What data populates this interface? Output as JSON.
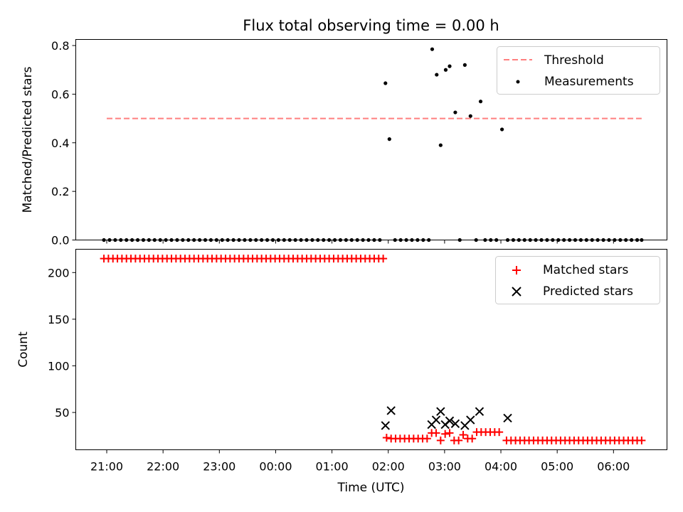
{
  "chart_data": [
    {
      "type": "scatter",
      "title": "Flux total observing time = 0.00 h",
      "xlabel": "",
      "ylabel": "Matched/Predicted stars",
      "xlim": [
        20.45,
        30.95
      ],
      "ylim": [
        0.0,
        0.825
      ],
      "yticks": [
        0.0,
        0.2,
        0.4,
        0.6,
        0.8
      ],
      "ytick_labels": [
        "0.0",
        "0.2",
        "0.4",
        "0.6",
        "0.8"
      ],
      "legend": {
        "position": "top-right",
        "threshold_label": "Threshold",
        "measurements_label": "Measurements"
      },
      "threshold": {
        "name": "Threshold",
        "value": 0.5,
        "x_range": [
          21.0,
          30.5
        ],
        "color": "#ff7f7f"
      },
      "series": [
        {
          "name": "Measurements",
          "color": "#000000",
          "x": [
            20.95,
            21.05,
            21.15,
            21.25,
            21.35,
            21.45,
            21.55,
            21.65,
            21.75,
            21.85,
            21.95,
            22.05,
            22.15,
            22.25,
            22.35,
            22.45,
            22.55,
            22.65,
            22.75,
            22.85,
            22.95,
            23.05,
            23.15,
            23.25,
            23.35,
            23.45,
            23.55,
            23.65,
            23.75,
            23.85,
            23.95,
            24.05,
            24.15,
            24.25,
            24.35,
            24.45,
            24.55,
            24.65,
            24.75,
            24.85,
            24.95,
            25.05,
            25.15,
            25.25,
            25.35,
            25.45,
            25.55,
            25.65,
            25.75,
            25.85,
            25.95,
            26.02,
            26.12,
            26.22,
            26.32,
            26.42,
            26.52,
            26.62,
            26.72,
            26.78,
            26.86,
            26.93,
            27.02,
            27.09,
            27.19,
            27.27,
            27.36,
            27.46,
            27.56,
            27.64,
            27.72,
            27.82,
            27.92,
            28.02,
            28.12,
            28.22,
            28.32,
            28.42,
            28.52,
            28.62,
            28.72,
            28.82,
            28.92,
            29.02,
            29.12,
            29.22,
            29.32,
            29.42,
            29.52,
            29.62,
            29.72,
            29.82,
            29.92,
            30.02,
            30.12,
            30.22,
            30.32,
            30.42,
            30.5
          ],
          "y": [
            0,
            0,
            0,
            0,
            0,
            0,
            0,
            0,
            0,
            0,
            0,
            0,
            0,
            0,
            0,
            0,
            0,
            0,
            0,
            0,
            0,
            0,
            0,
            0,
            0,
            0,
            0,
            0,
            0,
            0,
            0,
            0,
            0,
            0,
            0,
            0,
            0,
            0,
            0,
            0,
            0,
            0,
            0,
            0,
            0,
            0,
            0,
            0,
            0,
            0,
            0.645,
            0.415,
            0,
            0,
            0,
            0,
            0,
            0,
            0,
            0.785,
            0.68,
            0.39,
            0.7,
            0.715,
            0.525,
            0,
            0.72,
            0.51,
            0,
            0.57,
            0,
            0,
            0,
            0.455,
            0,
            0,
            0,
            0,
            0,
            0,
            0,
            0,
            0,
            0,
            0,
            0,
            0,
            0,
            0,
            0,
            0,
            0,
            0,
            0,
            0,
            0,
            0,
            0,
            0
          ]
        }
      ]
    },
    {
      "type": "scatter",
      "title": "",
      "xlabel": "Time (UTC)",
      "ylabel": "Count",
      "xlim": [
        20.45,
        30.95
      ],
      "ylim": [
        10,
        225
      ],
      "yticks": [
        50,
        100,
        150,
        200
      ],
      "ytick_labels": [
        "50",
        "100",
        "150",
        "200"
      ],
      "xticks": [
        21,
        22,
        23,
        24,
        25,
        26,
        27,
        28,
        29,
        30
      ],
      "xtick_labels": [
        "21:00",
        "22:00",
        "23:00",
        "00:00",
        "01:00",
        "02:00",
        "03:00",
        "04:00",
        "05:00",
        "06:00"
      ],
      "legend": {
        "position": "top-right",
        "matched_label": "Matched stars",
        "predicted_label": "Predicted stars"
      },
      "series": [
        {
          "name": "Matched stars",
          "color": "#ff0000",
          "marker": "+",
          "x": [
            20.95,
            21.03,
            21.11,
            21.19,
            21.27,
            21.35,
            21.43,
            21.51,
            21.59,
            21.67,
            21.75,
            21.83,
            21.91,
            21.99,
            22.07,
            22.15,
            22.23,
            22.31,
            22.39,
            22.47,
            22.55,
            22.63,
            22.71,
            22.79,
            22.87,
            22.95,
            23.03,
            23.11,
            23.19,
            23.27,
            23.35,
            23.43,
            23.51,
            23.59,
            23.67,
            23.75,
            23.83,
            23.91,
            23.99,
            24.07,
            24.15,
            24.23,
            24.31,
            24.39,
            24.47,
            24.55,
            24.63,
            24.71,
            24.79,
            24.87,
            24.95,
            25.03,
            25.11,
            25.19,
            25.27,
            25.35,
            25.43,
            25.51,
            25.59,
            25.67,
            25.75,
            25.83,
            25.91,
            25.97,
            26.05,
            26.13,
            26.21,
            26.29,
            26.37,
            26.45,
            26.53,
            26.61,
            26.69,
            26.77,
            26.85,
            26.93,
            27.01,
            27.09,
            27.17,
            27.25,
            27.33,
            27.41,
            27.49,
            27.57,
            27.65,
            27.73,
            27.81,
            27.89,
            27.97,
            28.1,
            28.18,
            28.26,
            28.34,
            28.42,
            28.5,
            28.58,
            28.66,
            28.74,
            28.82,
            28.9,
            28.98,
            29.06,
            29.14,
            29.22,
            29.3,
            29.38,
            29.46,
            29.54,
            29.62,
            29.7,
            29.78,
            29.86,
            29.94,
            30.02,
            30.1,
            30.18,
            30.26,
            30.34,
            30.42,
            30.5
          ],
          "y": [
            215,
            215,
            215,
            215,
            215,
            215,
            215,
            215,
            215,
            215,
            215,
            215,
            215,
            215,
            215,
            215,
            215,
            215,
            215,
            215,
            215,
            215,
            215,
            215,
            215,
            215,
            215,
            215,
            215,
            215,
            215,
            215,
            215,
            215,
            215,
            215,
            215,
            215,
            215,
            215,
            215,
            215,
            215,
            215,
            215,
            215,
            215,
            215,
            215,
            215,
            215,
            215,
            215,
            215,
            215,
            215,
            215,
            215,
            215,
            215,
            215,
            215,
            215,
            23,
            22,
            22,
            22,
            22,
            22,
            22,
            22,
            22,
            22,
            28,
            28,
            20,
            27,
            28,
            20,
            20,
            26,
            22,
            22,
            29,
            29,
            29,
            29,
            29,
            29,
            20,
            20,
            20,
            20,
            20,
            20,
            20,
            20,
            20,
            20,
            20,
            20,
            20,
            20,
            20,
            20,
            20,
            20,
            20,
            20,
            20,
            20,
            20,
            20,
            20,
            20,
            20,
            20,
            20,
            20,
            20
          ]
        },
        {
          "name": "Predicted stars",
          "color": "#000000",
          "marker": "x",
          "x": [
            25.95,
            26.05,
            26.77,
            26.85,
            26.93,
            27.01,
            27.09,
            27.19,
            27.36,
            27.46,
            27.62,
            28.12
          ],
          "y": [
            36,
            52,
            37,
            42,
            51,
            37,
            41,
            38,
            36,
            42,
            51,
            44
          ]
        }
      ]
    }
  ]
}
